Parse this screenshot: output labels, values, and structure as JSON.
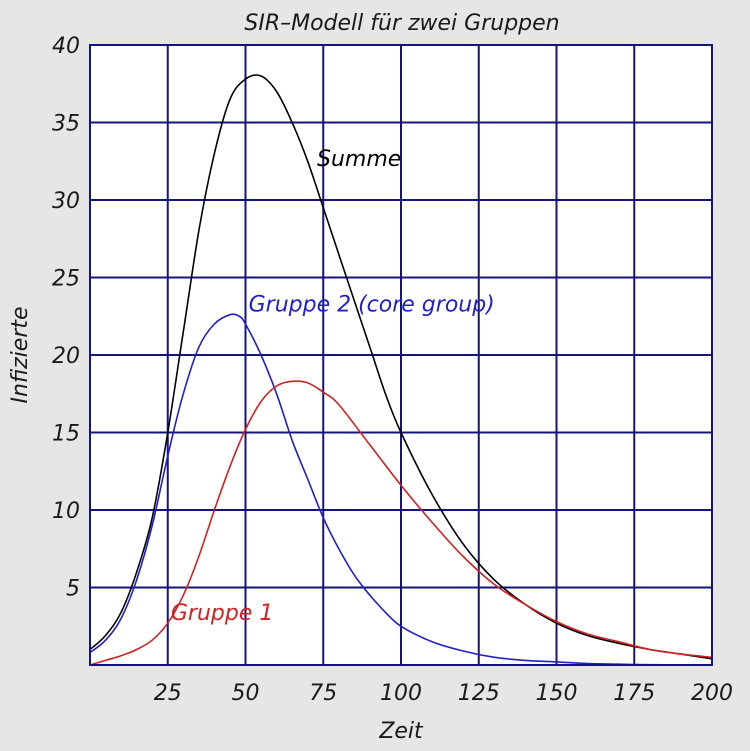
{
  "chart_data": {
    "type": "line",
    "title": "SIR–Modell für zwei Gruppen",
    "xlabel": "Zeit",
    "ylabel": "Infizierte",
    "xlim": [
      0,
      200
    ],
    "ylim": [
      0,
      40
    ],
    "grid": true,
    "grid_color": "#14147a",
    "background_color": "#ffffff",
    "x_ticks": [
      25,
      50,
      75,
      100,
      125,
      150,
      175,
      200
    ],
    "y_ticks": [
      5,
      10,
      15,
      20,
      25,
      30,
      35,
      40
    ],
    "series": [
      {
        "name": "Summe",
        "color": "#000000",
        "x": [
          0,
          5,
          10,
          15,
          20,
          25,
          30,
          35,
          40,
          45,
          50,
          55,
          60,
          65,
          70,
          75,
          80,
          85,
          90,
          95,
          100,
          110,
          120,
          130,
          140,
          150,
          160,
          170,
          180,
          190,
          200
        ],
        "y": [
          1.0,
          1.9,
          3.4,
          6.0,
          9.5,
          15.0,
          21.5,
          28.0,
          33.0,
          36.5,
          37.8,
          38.0,
          37.0,
          35.0,
          32.5,
          29.5,
          26.5,
          23.5,
          20.5,
          17.5,
          15.0,
          11.0,
          7.8,
          5.5,
          3.9,
          2.7,
          1.9,
          1.4,
          1.0,
          0.7,
          0.4
        ]
      },
      {
        "name": "Gruppe 2 (core group)",
        "color": "#1f1fcc",
        "x": [
          0,
          5,
          10,
          15,
          20,
          25,
          30,
          35,
          40,
          45,
          48,
          50,
          55,
          60,
          65,
          70,
          75,
          80,
          85,
          90,
          95,
          100,
          110,
          120,
          130,
          140,
          150,
          160,
          170,
          180,
          190,
          200
        ],
        "y": [
          0.8,
          1.6,
          3.0,
          5.5,
          9.0,
          13.5,
          17.5,
          20.5,
          22.0,
          22.6,
          22.5,
          22.0,
          20.0,
          17.5,
          14.5,
          12.0,
          9.5,
          7.5,
          5.8,
          4.5,
          3.4,
          2.5,
          1.5,
          0.9,
          0.5,
          0.3,
          0.2,
          0.1,
          0.05,
          0.02,
          0.01,
          0.0
        ]
      },
      {
        "name": "Gruppe 1",
        "color": "#d42020",
        "x": [
          0,
          5,
          10,
          15,
          20,
          25,
          30,
          35,
          40,
          45,
          50,
          55,
          60,
          65,
          70,
          75,
          80,
          90,
          100,
          110,
          120,
          130,
          140,
          150,
          160,
          170,
          180,
          190,
          200
        ],
        "y": [
          0.0,
          0.3,
          0.6,
          1.0,
          1.6,
          2.7,
          4.5,
          7.0,
          10.0,
          12.8,
          15.2,
          17.0,
          18.0,
          18.3,
          18.2,
          17.6,
          16.8,
          14.2,
          11.6,
          9.2,
          7.0,
          5.2,
          3.9,
          2.8,
          2.0,
          1.5,
          1.0,
          0.7,
          0.5
        ]
      }
    ],
    "annotations": [
      {
        "text": "Summe",
        "x": 73,
        "y": 32.2,
        "color": "#000000"
      },
      {
        "text": "Gruppe 2 (core group)",
        "x": 51,
        "y": 22.8,
        "color": "#1f1fcc"
      },
      {
        "text": "Gruppe 1",
        "x": 26,
        "y": 2.9,
        "color": "#d42020"
      }
    ]
  }
}
